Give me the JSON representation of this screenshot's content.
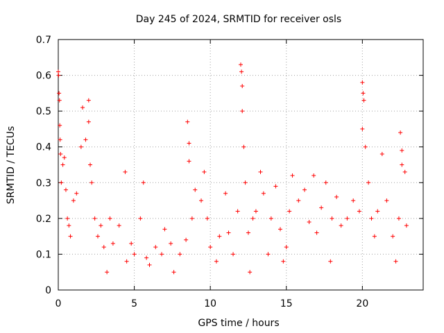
{
  "chart_data": {
    "type": "scatter",
    "title": "Day 245 of 2024, SRMTID for receiver osls",
    "xlabel": "GPS time / hours",
    "ylabel": "SRMTID / TECUs",
    "xlim": [
      0,
      24
    ],
    "ylim": [
      0,
      0.7
    ],
    "xticks": [
      "0",
      "5",
      "10",
      "15",
      "20"
    ],
    "xtick_values": [
      0,
      5,
      10,
      15,
      20
    ],
    "yticks": [
      "0",
      "0.1",
      "0.2",
      "0.3",
      "0.4",
      "0.5",
      "0.6",
      "0.7"
    ],
    "ytick_values": [
      0,
      0.1,
      0.2,
      0.3,
      0.4,
      0.5,
      0.6,
      0.7
    ],
    "grid": true,
    "marker": "+",
    "series_color": "#ff0000",
    "series": [
      {
        "name": "SRMTID",
        "points": [
          [
            0.0,
            0.61
          ],
          [
            0.02,
            0.6
          ],
          [
            0.05,
            0.55
          ],
          [
            0.08,
            0.53
          ],
          [
            0.1,
            0.46
          ],
          [
            0.12,
            0.42
          ],
          [
            0.15,
            0.38
          ],
          [
            0.2,
            0.3
          ],
          [
            0.3,
            0.35
          ],
          [
            0.4,
            0.37
          ],
          [
            0.5,
            0.28
          ],
          [
            0.6,
            0.2
          ],
          [
            0.7,
            0.18
          ],
          [
            0.8,
            0.15
          ],
          [
            1.0,
            0.25
          ],
          [
            1.2,
            0.27
          ],
          [
            1.5,
            0.4
          ],
          [
            1.6,
            0.51
          ],
          [
            1.8,
            0.42
          ],
          [
            2.0,
            0.53
          ],
          [
            2.0,
            0.47
          ],
          [
            2.1,
            0.35
          ],
          [
            2.2,
            0.3
          ],
          [
            2.4,
            0.2
          ],
          [
            2.6,
            0.15
          ],
          [
            2.8,
            0.18
          ],
          [
            3.0,
            0.12
          ],
          [
            3.2,
            0.05
          ],
          [
            3.4,
            0.2
          ],
          [
            3.6,
            0.13
          ],
          [
            4.0,
            0.18
          ],
          [
            4.4,
            0.33
          ],
          [
            4.5,
            0.08
          ],
          [
            4.8,
            0.13
          ],
          [
            5.0,
            0.1
          ],
          [
            5.4,
            0.2
          ],
          [
            5.6,
            0.3
          ],
          [
            5.8,
            0.09
          ],
          [
            6.0,
            0.07
          ],
          [
            6.4,
            0.12
          ],
          [
            6.8,
            0.1
          ],
          [
            7.0,
            0.17
          ],
          [
            7.4,
            0.13
          ],
          [
            7.6,
            0.05
          ],
          [
            8.0,
            0.1
          ],
          [
            8.4,
            0.14
          ],
          [
            8.5,
            0.47
          ],
          [
            8.6,
            0.41
          ],
          [
            8.6,
            0.36
          ],
          [
            8.8,
            0.2
          ],
          [
            9.0,
            0.28
          ],
          [
            9.4,
            0.25
          ],
          [
            9.6,
            0.33
          ],
          [
            9.8,
            0.2
          ],
          [
            10.0,
            0.12
          ],
          [
            10.4,
            0.08
          ],
          [
            10.6,
            0.15
          ],
          [
            11.0,
            0.27
          ],
          [
            11.2,
            0.16
          ],
          [
            11.5,
            0.1
          ],
          [
            11.8,
            0.22
          ],
          [
            12.0,
            0.63
          ],
          [
            12.05,
            0.61
          ],
          [
            12.1,
            0.57
          ],
          [
            12.1,
            0.5
          ],
          [
            12.2,
            0.4
          ],
          [
            12.3,
            0.3
          ],
          [
            12.5,
            0.16
          ],
          [
            12.6,
            0.05
          ],
          [
            12.8,
            0.2
          ],
          [
            13.0,
            0.22
          ],
          [
            13.3,
            0.33
          ],
          [
            13.5,
            0.27
          ],
          [
            13.8,
            0.1
          ],
          [
            14.0,
            0.2
          ],
          [
            14.3,
            0.29
          ],
          [
            14.6,
            0.17
          ],
          [
            14.8,
            0.08
          ],
          [
            15.0,
            0.12
          ],
          [
            15.2,
            0.22
          ],
          [
            15.4,
            0.32
          ],
          [
            15.8,
            0.25
          ],
          [
            16.2,
            0.28
          ],
          [
            16.5,
            0.19
          ],
          [
            16.8,
            0.32
          ],
          [
            17.0,
            0.16
          ],
          [
            17.3,
            0.23
          ],
          [
            17.6,
            0.3
          ],
          [
            17.9,
            0.08
          ],
          [
            18.0,
            0.2
          ],
          [
            18.3,
            0.26
          ],
          [
            18.6,
            0.18
          ],
          [
            19.0,
            0.2
          ],
          [
            19.4,
            0.25
          ],
          [
            19.8,
            0.22
          ],
          [
            20.0,
            0.58
          ],
          [
            20.05,
            0.55
          ],
          [
            20.1,
            0.53
          ],
          [
            20.0,
            0.45
          ],
          [
            20.2,
            0.4
          ],
          [
            20.4,
            0.3
          ],
          [
            20.6,
            0.2
          ],
          [
            20.8,
            0.15
          ],
          [
            21.0,
            0.22
          ],
          [
            21.3,
            0.38
          ],
          [
            21.6,
            0.25
          ],
          [
            22.0,
            0.15
          ],
          [
            22.2,
            0.08
          ],
          [
            22.4,
            0.2
          ],
          [
            22.5,
            0.44
          ],
          [
            22.6,
            0.39
          ],
          [
            22.6,
            0.35
          ],
          [
            22.8,
            0.33
          ],
          [
            22.9,
            0.18
          ]
        ]
      }
    ]
  }
}
